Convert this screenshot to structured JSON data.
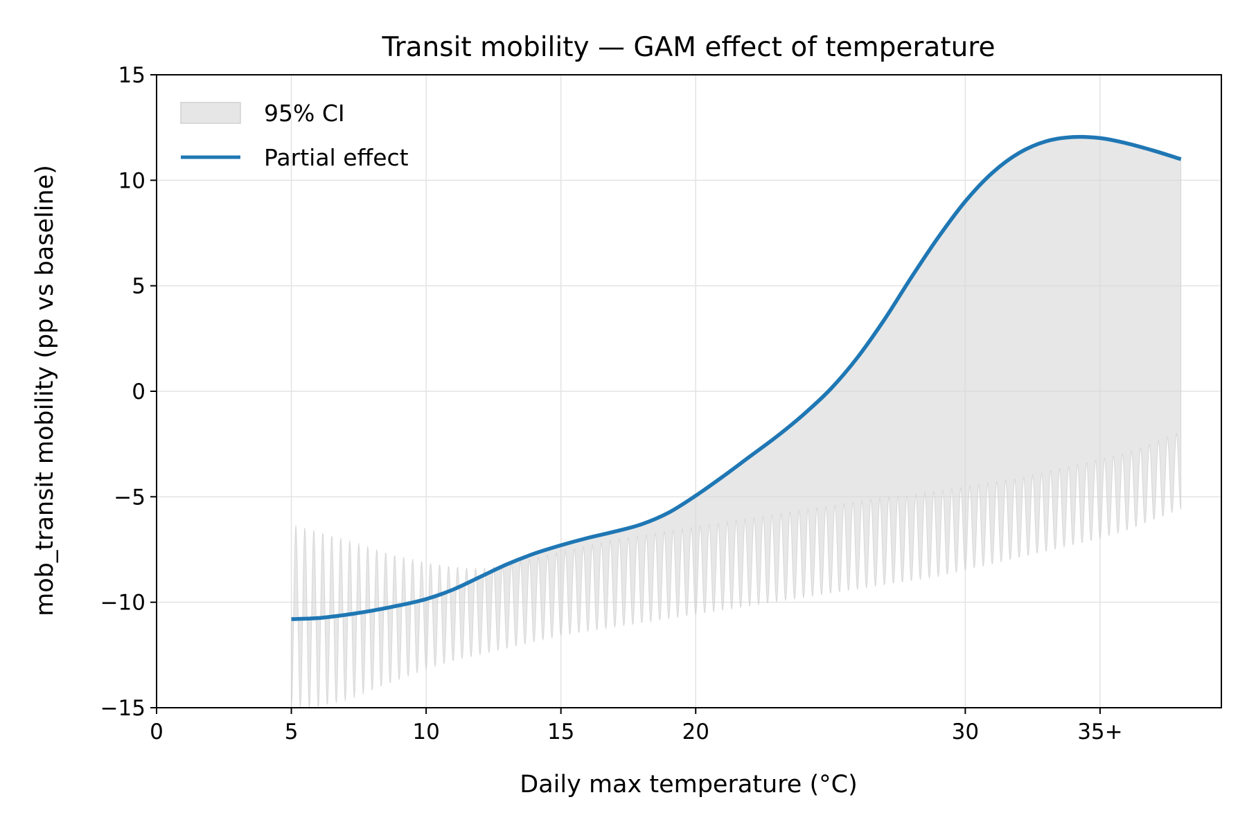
{
  "chart_data": {
    "type": "line",
    "title": "Transit mobility — GAM effect of temperature",
    "xlabel": "Daily max temperature (°C)",
    "ylabel": "mob_transit mobility (pp vs baseline)",
    "xlim": [
      0,
      39.5
    ],
    "ylim": [
      -15,
      15
    ],
    "x_ticks": [
      {
        "value": 0,
        "label": "0"
      },
      {
        "value": 5,
        "label": "5"
      },
      {
        "value": 10,
        "label": "10"
      },
      {
        "value": 15,
        "label": "15"
      },
      {
        "value": 20,
        "label": "20"
      },
      {
        "value": 30,
        "label": "30"
      },
      {
        "value": 35,
        "label": "35+"
      }
    ],
    "y_ticks": [
      {
        "value": -15,
        "label": "−15"
      },
      {
        "value": -10,
        "label": "−10"
      },
      {
        "value": -5,
        "label": "−5"
      },
      {
        "value": 0,
        "label": "0"
      },
      {
        "value": 5,
        "label": "5"
      },
      {
        "value": 10,
        "label": "10"
      },
      {
        "value": 15,
        "label": "15"
      }
    ],
    "grid": true,
    "legend": {
      "position": "top-left",
      "entries": [
        {
          "label": "95% CI",
          "kind": "band",
          "color": "#d9d9d9"
        },
        {
          "label": "Partial effect",
          "kind": "line",
          "color": "#1f77b4"
        }
      ]
    },
    "series": [
      {
        "name": "Partial effect",
        "color": "#1f77b4",
        "x": [
          5,
          6,
          7,
          8,
          9,
          10,
          11,
          12,
          13,
          14,
          15,
          16,
          17,
          18,
          19,
          20,
          21,
          22,
          23,
          24,
          25,
          26,
          27,
          28,
          29,
          30,
          31,
          32,
          33,
          34,
          35,
          36,
          37,
          38
        ],
        "y": [
          -10.8,
          -10.75,
          -10.6,
          -10.4,
          -10.15,
          -9.85,
          -9.4,
          -8.8,
          -8.2,
          -7.7,
          -7.3,
          -6.95,
          -6.65,
          -6.3,
          -5.75,
          -4.95,
          -4.05,
          -3.1,
          -2.15,
          -1.1,
          0.1,
          1.6,
          3.4,
          5.4,
          7.3,
          9.0,
          10.35,
          11.3,
          11.85,
          12.05,
          12.0,
          11.75,
          11.4,
          11.0
        ]
      }
    ],
    "ci_band": {
      "name": "95% CI",
      "color": "#d9d9d9",
      "upper_ref": "Partial effect",
      "lower_envelope": {
        "x": [
          5,
          6,
          7,
          8,
          9,
          10,
          11,
          12,
          13,
          14,
          15,
          16,
          17,
          18,
          19,
          20,
          21,
          22,
          23,
          24,
          25,
          26,
          27,
          28,
          29,
          30,
          31,
          32,
          33,
          34,
          35,
          36,
          37,
          38
        ],
        "top": [
          -6.3,
          -6.6,
          -7.0,
          -7.4,
          -7.8,
          -8.1,
          -8.3,
          -8.4,
          -8.2,
          -7.9,
          -7.6,
          -7.3,
          -7.0,
          -6.8,
          -6.6,
          -6.4,
          -6.2,
          -6.0,
          -5.8,
          -5.6,
          -5.4,
          -5.2,
          -5.0,
          -4.9,
          -4.7,
          -4.5,
          -4.3,
          -4.1,
          -3.8,
          -3.5,
          -3.2,
          -2.9,
          -2.4,
          -1.9
        ],
        "bottom": [
          -15.0,
          -15.0,
          -14.7,
          -14.2,
          -13.7,
          -13.2,
          -12.8,
          -12.5,
          -12.2,
          -11.9,
          -11.6,
          -11.4,
          -11.2,
          -11.0,
          -10.8,
          -10.6,
          -10.4,
          -10.2,
          -10.0,
          -9.8,
          -9.6,
          -9.4,
          -9.2,
          -9.0,
          -8.8,
          -8.5,
          -8.2,
          -7.9,
          -7.6,
          -7.3,
          -7.0,
          -6.6,
          -6.1,
          -5.6
        ]
      },
      "oscillations_per_degree": 3
    }
  }
}
